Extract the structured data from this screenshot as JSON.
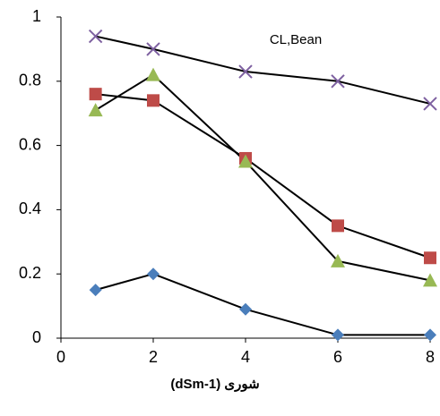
{
  "chart_data": {
    "type": "line",
    "title": "CL,Bean",
    "x_label": "شوری (dSm-1)",
    "x": [
      0.75,
      2,
      4,
      6,
      8
    ],
    "series": [
      {
        "color": "#4a7ebb",
        "marker": "diamond",
        "values": [
          0.15,
          0.2,
          0.09,
          0.01,
          0.01
        ]
      },
      {
        "color": "#be4b48",
        "marker": "square",
        "values": [
          0.76,
          0.74,
          0.56,
          0.35,
          0.25
        ]
      },
      {
        "color": "#98b954",
        "marker": "triangle",
        "values": [
          0.71,
          0.82,
          0.55,
          0.24,
          0.18
        ]
      },
      {
        "color": "#7d60a0",
        "marker": "x",
        "values": [
          0.94,
          0.9,
          0.83,
          0.8,
          0.73
        ]
      }
    ],
    "line_color": "#000000",
    "xlim": [
      0,
      8
    ],
    "xticks": [
      0,
      2,
      4,
      6,
      8
    ],
    "ylim": [
      0,
      1
    ],
    "yticks": [
      0,
      0.2,
      0.4,
      0.6,
      0.8,
      1
    ],
    "grid": false
  }
}
